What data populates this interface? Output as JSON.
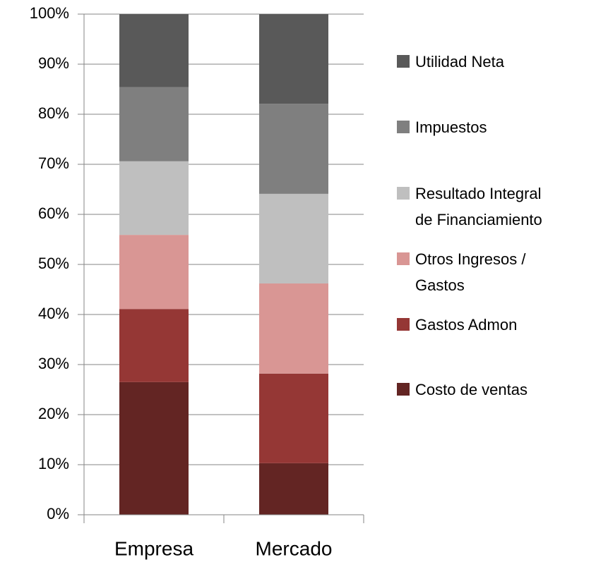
{
  "chart_data": {
    "type": "stacked_bar",
    "categories": [
      "Empresa",
      "Mercado"
    ],
    "series": [
      {
        "name": "Costo de ventas",
        "color": "#632523",
        "values": [
          26.5,
          10.3
        ]
      },
      {
        "name": "Gastos Admon",
        "color": "#953735",
        "values": [
          14.6,
          17.9
        ]
      },
      {
        "name": "Otros Ingresos / Gastos",
        "color": "#D99694",
        "values": [
          14.8,
          18.0
        ]
      },
      {
        "name": "Resultado Integral de Financiamiento",
        "color": "#BFBFBF",
        "values": [
          14.7,
          17.9
        ]
      },
      {
        "name": "Impuestos",
        "color": "#7F7F7F",
        "values": [
          14.8,
          18.0
        ]
      },
      {
        "name": "Utilidad Neta",
        "color": "#595959",
        "values": [
          14.6,
          17.9
        ]
      }
    ],
    "ylim": [
      0,
      100
    ],
    "yticks": [
      {
        "value": 0,
        "label": "0%"
      },
      {
        "value": 10,
        "label": "10%"
      },
      {
        "value": 20,
        "label": "20%"
      },
      {
        "value": 30,
        "label": "30%"
      },
      {
        "value": 40,
        "label": "40%"
      },
      {
        "value": 50,
        "label": "50%"
      },
      {
        "value": 60,
        "label": "60%"
      },
      {
        "value": 70,
        "label": "70%"
      },
      {
        "value": 80,
        "label": "80%"
      },
      {
        "value": 90,
        "label": "90%"
      },
      {
        "value": 100,
        "label": "100%"
      }
    ],
    "grid": true,
    "legend": "right"
  }
}
